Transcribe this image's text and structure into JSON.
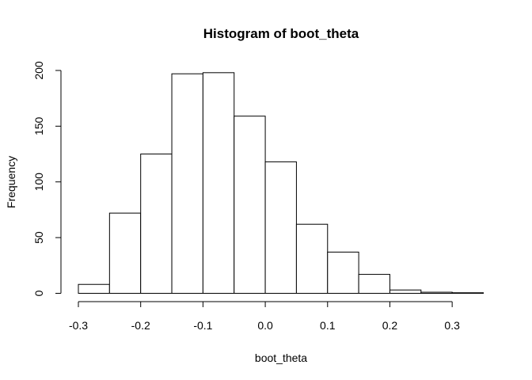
{
  "chart_data": {
    "type": "bar",
    "title": "Histogram of boot_theta",
    "xlabel": "boot_theta",
    "ylabel": "Frequency",
    "bin_edges": [
      -0.3,
      -0.25,
      -0.2,
      -0.15,
      -0.1,
      -0.05,
      0.0,
      0.05,
      0.1,
      0.15,
      0.2,
      0.25,
      0.3,
      0.35
    ],
    "values": [
      8,
      72,
      125,
      197,
      198,
      159,
      118,
      62,
      37,
      17,
      3,
      1,
      0.5
    ],
    "xlim": [
      -0.3,
      0.35
    ],
    "ylim": [
      0,
      200
    ],
    "x_ticks": [
      -0.3,
      -0.2,
      -0.1,
      0.0,
      0.1,
      0.2,
      0.3
    ],
    "x_tick_labels": [
      "-0.3",
      "-0.2",
      "-0.1",
      "0.0",
      "0.1",
      "0.2",
      "0.3"
    ],
    "y_ticks": [
      0,
      50,
      100,
      150,
      200
    ],
    "y_tick_labels": [
      "0",
      "50",
      "100",
      "150",
      "200"
    ],
    "grid": false,
    "legend": "none"
  }
}
